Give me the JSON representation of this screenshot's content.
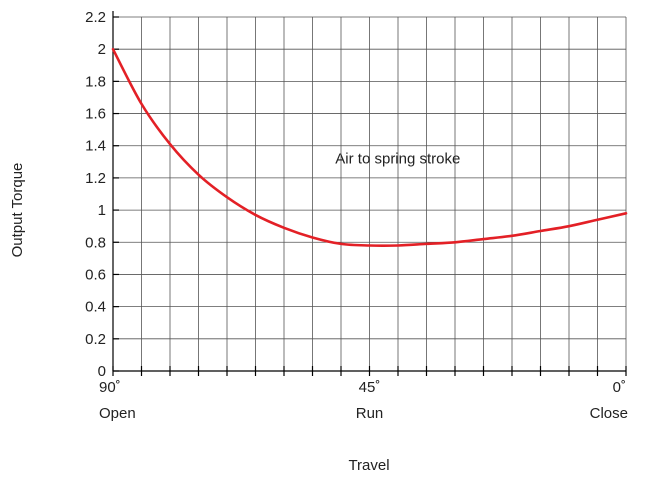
{
  "chart_data": {
    "type": "line",
    "xlabel": "Travel",
    "ylabel": "Output Torque",
    "x_range": [
      90,
      0
    ],
    "ylim": [
      0,
      2.2
    ],
    "y_ticks": [
      0,
      0.2,
      0.4,
      0.6,
      0.8,
      1,
      1.2,
      1.4,
      1.6,
      1.8,
      2,
      2.2
    ],
    "y_tick_labels": [
      "0",
      "0.2",
      "0.4",
      "0.6",
      "0.8",
      "1",
      "1.2",
      "1.4",
      "1.6",
      "1.8",
      "2",
      "2.2"
    ],
    "x_major_labels": [
      {
        "x": 90,
        "degree": "90˚",
        "name": "Open"
      },
      {
        "x": 45,
        "degree": "45˚",
        "name": "Run"
      },
      {
        "x": 0,
        "degree": "0˚",
        "name": "Close"
      }
    ],
    "grid": true,
    "annotations": [
      {
        "text": "Air to spring stroke",
        "x": 51,
        "y": 1.29
      }
    ],
    "series": [
      {
        "color": "#e32026",
        "x": [
          90,
          85,
          80,
          75,
          70,
          65,
          60,
          55,
          50,
          45,
          40,
          35,
          30,
          25,
          20,
          15,
          10,
          5,
          0
        ],
        "y": [
          2.0,
          1.66,
          1.41,
          1.22,
          1.08,
          0.97,
          0.89,
          0.83,
          0.79,
          0.78,
          0.78,
          0.79,
          0.8,
          0.82,
          0.84,
          0.87,
          0.9,
          0.94,
          0.98
        ]
      }
    ]
  }
}
